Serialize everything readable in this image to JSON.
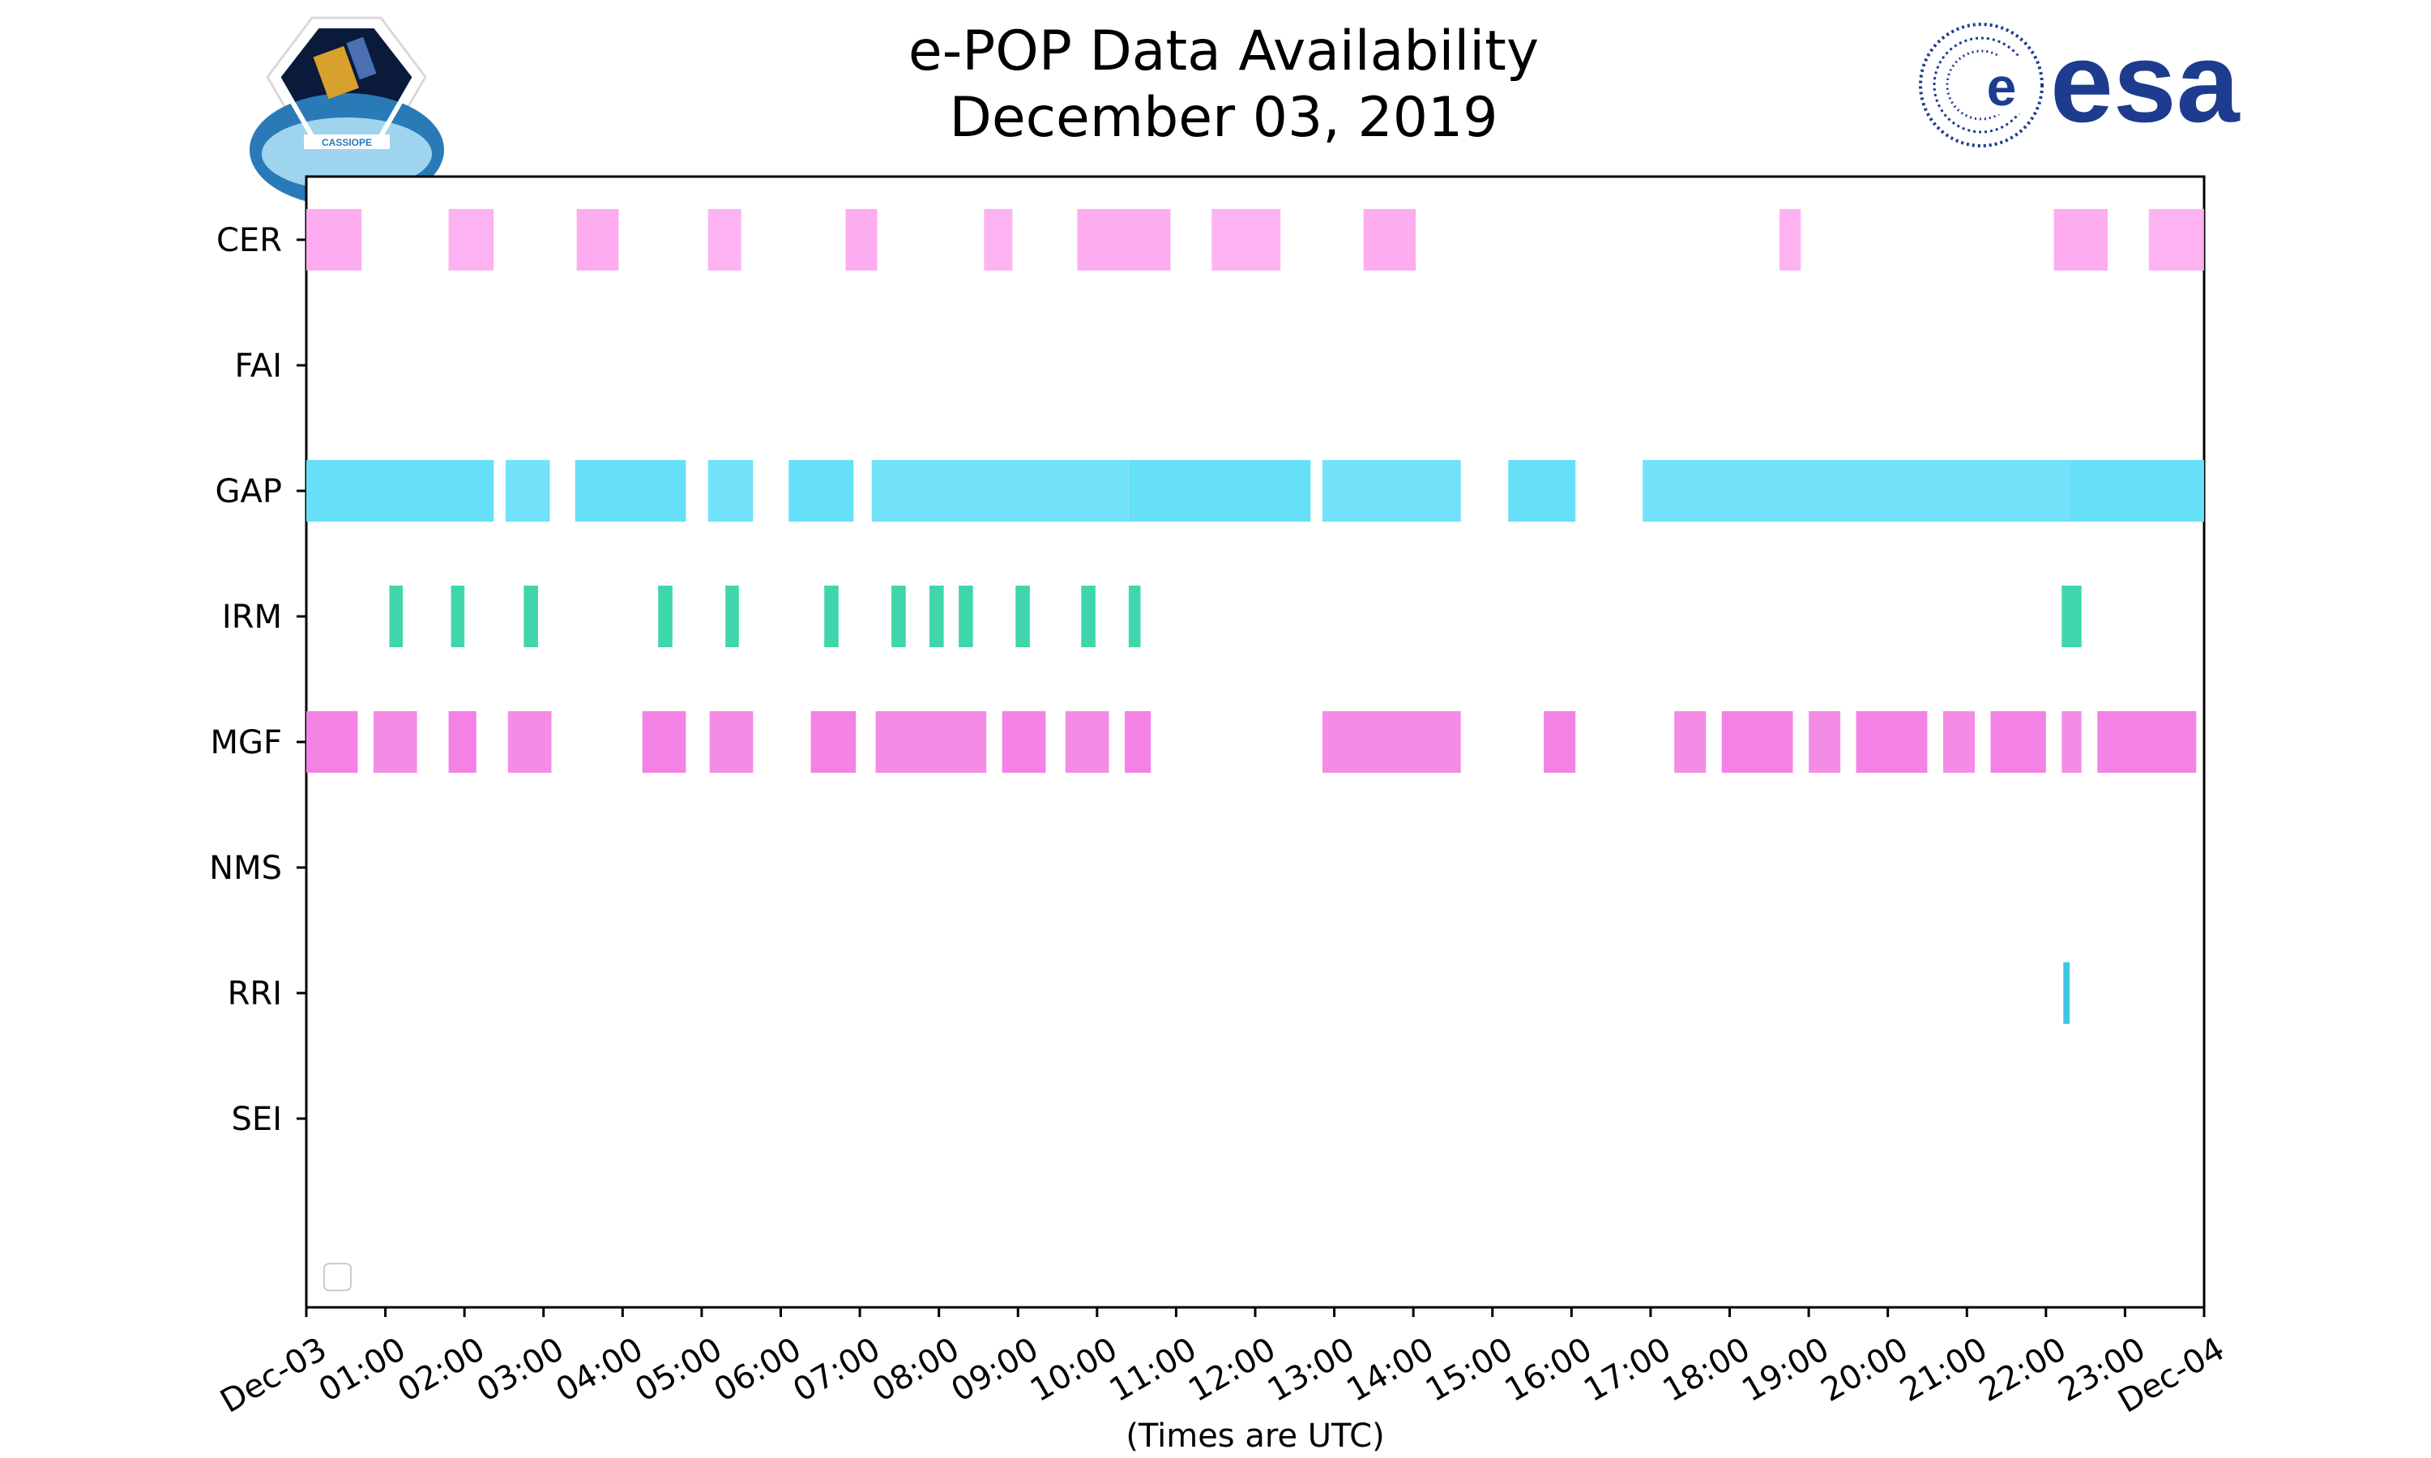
{
  "header": {
    "title_line1": "e-POP Data Availability",
    "title_line2": "December 03, 2019",
    "left_logo_text": "CASSIOPE",
    "right_logo_text": "esa"
  },
  "chart_data": {
    "type": "timeline",
    "title": "e-POP Data Availability December 03, 2019",
    "xlabel": "(Times are UTC)",
    "ylabel": "",
    "x_unit": "hours UTC",
    "xlim": [
      0,
      24
    ],
    "x_ticks": [
      "Dec-03",
      "01:00",
      "02:00",
      "03:00",
      "04:00",
      "05:00",
      "06:00",
      "07:00",
      "08:00",
      "09:00",
      "10:00",
      "11:00",
      "12:00",
      "13:00",
      "14:00",
      "15:00",
      "16:00",
      "17:00",
      "18:00",
      "19:00",
      "20:00",
      "21:00",
      "22:00",
      "23:00",
      "Dec-04"
    ],
    "categories": [
      "CER",
      "FAI",
      "GAP",
      "IRM",
      "MGF",
      "NMS",
      "RRI",
      "SEI"
    ],
    "legend": "bottom-left (empty)",
    "grid": false,
    "series": [
      {
        "name": "CER",
        "color": "#fdacf0",
        "intervals": [
          [
            0,
            0.7
          ],
          [
            1.8,
            2.37
          ],
          [
            3.42,
            3.95
          ],
          [
            5.08,
            5.5
          ],
          [
            6.82,
            7.22
          ],
          [
            8.57,
            8.93
          ],
          [
            9.75,
            10.93
          ],
          [
            11.45,
            12.32
          ],
          [
            13.37,
            14.03
          ],
          [
            18.63,
            18.9
          ],
          [
            22.1,
            22.78
          ],
          [
            23.3,
            24
          ]
        ]
      },
      {
        "name": "FAI",
        "color": "#cccccc",
        "intervals": []
      },
      {
        "name": "GAP",
        "color": "#66dff8",
        "intervals": [
          [
            0,
            2.37
          ],
          [
            2.52,
            3.08
          ],
          [
            3.4,
            4.8
          ],
          [
            5.08,
            5.65
          ],
          [
            6.1,
            6.92
          ],
          [
            7.15,
            10.4
          ],
          [
            10.4,
            12.7
          ],
          [
            12.85,
            14.6
          ],
          [
            15.2,
            16.05
          ],
          [
            16.9,
            22.3
          ],
          [
            22.3,
            24
          ]
        ]
      },
      {
        "name": "IRM",
        "color": "#40d6ac",
        "intervals": [
          [
            1.05,
            1.22
          ],
          [
            1.83,
            2.0
          ],
          [
            2.75,
            2.93
          ],
          [
            4.45,
            4.63
          ],
          [
            5.3,
            5.47
          ],
          [
            6.55,
            6.73
          ],
          [
            7.4,
            7.58
          ],
          [
            7.88,
            8.06
          ],
          [
            8.25,
            8.43
          ],
          [
            8.97,
            9.15
          ],
          [
            9.8,
            9.98
          ],
          [
            10.4,
            10.55
          ],
          [
            22.2,
            22.45
          ]
        ]
      },
      {
        "name": "MGF",
        "color": "#f382e4",
        "intervals": [
          [
            0,
            0.65
          ],
          [
            0.85,
            1.4
          ],
          [
            1.8,
            2.15
          ],
          [
            2.55,
            3.1
          ],
          [
            4.25,
            4.8
          ],
          [
            5.1,
            5.65
          ],
          [
            6.38,
            6.95
          ],
          [
            7.2,
            8.6
          ],
          [
            8.8,
            9.35
          ],
          [
            9.6,
            10.15
          ],
          [
            10.35,
            10.68
          ],
          [
            12.85,
            14.6
          ],
          [
            15.65,
            16.05
          ],
          [
            17.3,
            17.7
          ],
          [
            17.9,
            18.8
          ],
          [
            19.0,
            19.4
          ],
          [
            19.6,
            20.5
          ],
          [
            20.7,
            21.1
          ],
          [
            21.3,
            22.0
          ],
          [
            22.2,
            22.45
          ],
          [
            22.65,
            23.9
          ]
        ]
      },
      {
        "name": "NMS",
        "color": "#cccccc",
        "intervals": []
      },
      {
        "name": "RRI",
        "color": "#3ec6e3",
        "intervals": [
          [
            22.22,
            22.3
          ]
        ]
      },
      {
        "name": "SEI",
        "color": "#cccccc",
        "intervals": []
      }
    ]
  }
}
